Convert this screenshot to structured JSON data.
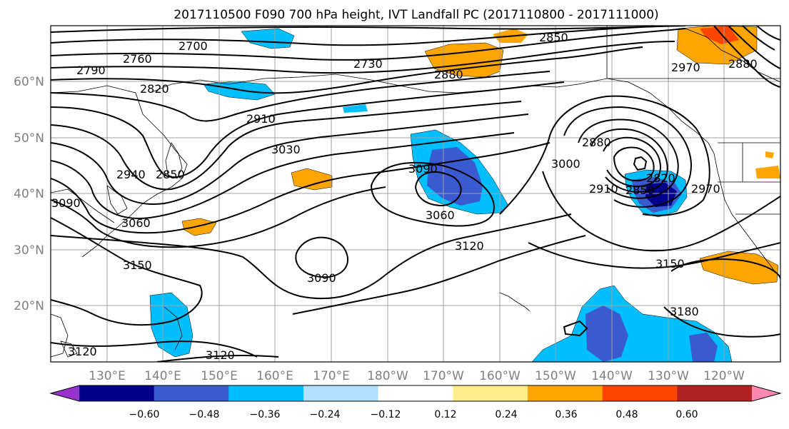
{
  "title": "2017110500 F090 700 hPa height, IVT Landfall PC (2017110800 - 2017111000)",
  "lat_labels": [
    "60°N",
    "50°N",
    "40°N",
    "30°N",
    "20°N"
  ],
  "lon_labels": [
    "130°E",
    "140°E",
    "150°E",
    "160°E",
    "170°E",
    "180°W",
    "170°W",
    "160°W",
    "150°W",
    "140°W",
    "130°W",
    "120°W"
  ],
  "contour_labels": [
    "2700",
    "2760",
    "2790",
    "2820",
    "2730",
    "2850",
    "2880",
    "2910",
    "3030",
    "2850",
    "2940",
    "3090",
    "3060",
    "3060",
    "3090",
    "3120",
    "3150",
    "3090",
    "3120",
    "3120",
    "2880",
    "3000",
    "2910",
    "2820",
    "2850",
    "2970",
    "3150",
    "3180",
    "2970",
    "2880"
  ],
  "colorbar": {
    "ticks": [
      "−0.60",
      "−0.48",
      "−0.36",
      "−0.24",
      "−0.12",
      "0.12",
      "0.24",
      "0.36",
      "0.48",
      "0.60"
    ],
    "colors": [
      "#9932cc",
      "#00008b",
      "#3a5bd0",
      "#00bfff",
      "#b0e2ff",
      "#ffffff",
      "#ffec8b",
      "#ffa500",
      "#ff4500",
      "#b22222",
      "#ff88b0"
    ]
  }
}
